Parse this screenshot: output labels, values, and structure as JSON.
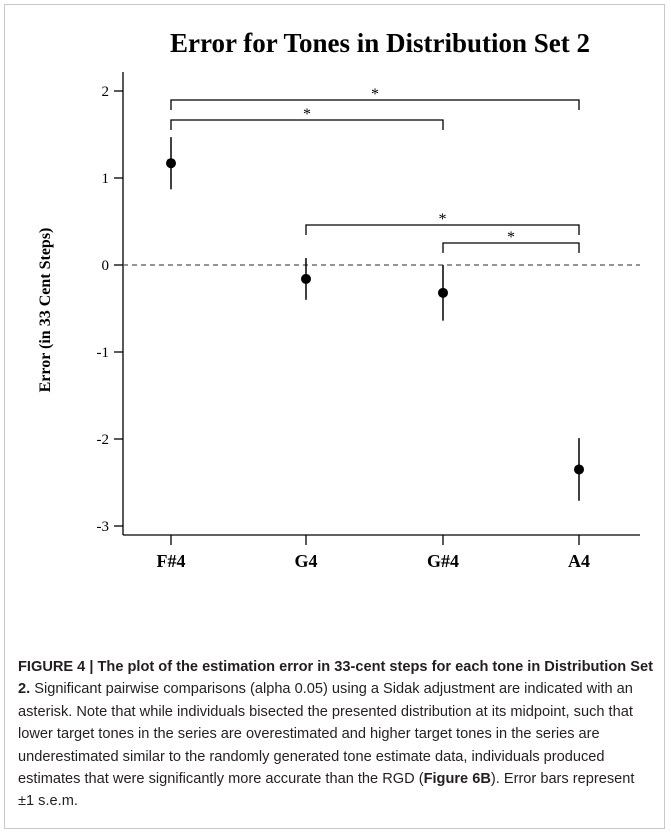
{
  "chart_data": {
    "type": "scatter",
    "title": "Error for Tones in Distribution Set 2",
    "xlabel": "",
    "ylabel": "Error (in 33 Cent Steps)",
    "categories": [
      "F#4",
      "G4",
      "G#4",
      "A4"
    ],
    "values": [
      1.17,
      -0.16,
      -0.32,
      -2.35
    ],
    "error": [
      0.3,
      0.24,
      0.32,
      0.36
    ],
    "ylim": [
      -3.3,
      2.2
    ],
    "yticks": [
      2,
      1,
      0,
      -1,
      -2,
      -3
    ],
    "ytick_labels": [
      "2",
      "1",
      "0",
      "-1",
      "-2",
      "-3"
    ],
    "reference_line": 0,
    "grid": false,
    "colors": {
      "marker": "#000000",
      "reference_line": "#555555"
    },
    "comparisons": [
      {
        "from": "F#4",
        "to": "A4",
        "label": "*"
      },
      {
        "from": "F#4",
        "to": "G#4",
        "label": "*"
      },
      {
        "from": "G4",
        "to": "A4",
        "label": "*"
      },
      {
        "from": "G#4",
        "to": "A4",
        "label": "*"
      }
    ]
  },
  "caption": {
    "label": "FIGURE 4 | The plot of the estimation error in 33-cent steps for each tone in Distribution Set 2.",
    "text_before": " Significant pairwise comparisons (alpha 0.05) using a Sidak adjustment are indicated with an asterisk. Note that while individuals bisected the presented distribution at its midpoint, such that lower target tones in the series are overestimated and higher target tones in the series are underestimated similar to the randomly generated tone estimate data, individuals produced estimates that were significantly more accurate than the RGD (",
    "ref": "Figure 6B",
    "text_after": "). Error bars represent ±1 s.e.m."
  }
}
